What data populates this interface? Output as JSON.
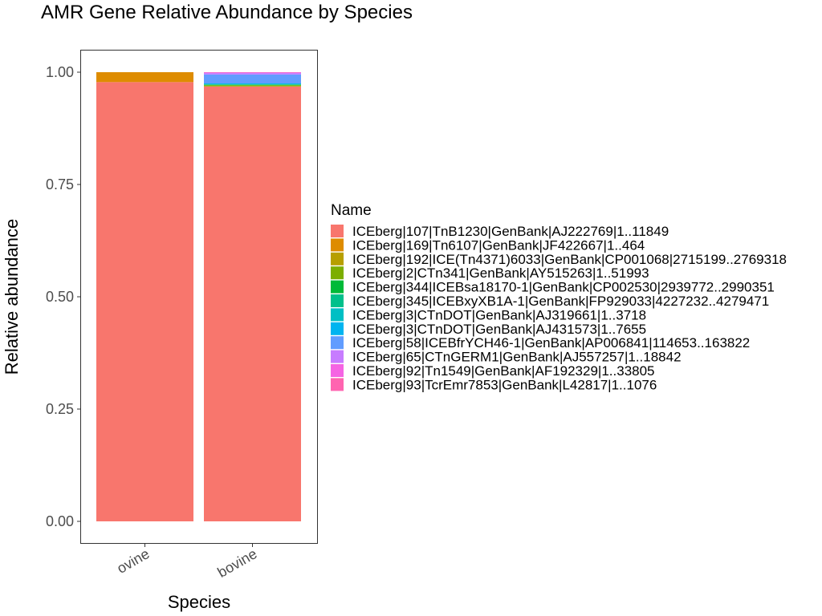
{
  "chart_data": {
    "type": "bar",
    "stacked": true,
    "title": "AMR Gene Relative Abundance by Species",
    "xlabel": "Species",
    "ylabel": "Relative abundance",
    "categories": [
      "ovine",
      "bovine"
    ],
    "ylim": [
      0,
      1
    ],
    "yticks": [
      "0.00",
      "0.25",
      "0.50",
      "0.75",
      "1.00"
    ],
    "grid": false,
    "legend_title": "Name",
    "legend_position": "right",
    "series": [
      {
        "name": "ICEberg|107|TnB1230|GenBank|AJ222769|1..11849",
        "color": "#F8766D",
        "values": [
          0.978,
          0.968
        ]
      },
      {
        "name": "ICEberg|169|Tn6107|GenBank|JF422667|1..464",
        "color": "#DE8C00",
        "values": [
          0.022,
          0.0
        ]
      },
      {
        "name": "ICEberg|192|ICE(Tn4371)6033|GenBank|CP001068|2715199..2769318",
        "color": "#B79F00",
        "values": [
          0.0,
          0.001
        ]
      },
      {
        "name": "ICEberg|2|CTn341|GenBank|AY515263|1..51993",
        "color": "#7CAE00",
        "values": [
          0.0,
          0.002
        ]
      },
      {
        "name": "ICEberg|344|ICEBsa18170-1|GenBank|CP002530|2939772..2990351",
        "color": "#00BA38",
        "values": [
          0.0,
          0.001
        ]
      },
      {
        "name": "ICEberg|345|ICEBxyXB1A-1|GenBank|FP929033|4227232..4279471",
        "color": "#00C08B",
        "values": [
          0.0,
          0.001
        ]
      },
      {
        "name": "ICEberg|3|CTnDOT|GenBank|AJ319661|1..3718",
        "color": "#00BFC4",
        "values": [
          0.0,
          0.001
        ]
      },
      {
        "name": "ICEberg|3|CTnDOT|GenBank|AJ431573|1..7655",
        "color": "#00B4F0",
        "values": [
          0.0,
          0.001
        ]
      },
      {
        "name": "ICEberg|58|ICEBfrYCH46-1|GenBank|AP006841|114653..163822",
        "color": "#619CFF",
        "values": [
          0.0,
          0.02
        ]
      },
      {
        "name": "ICEberg|65|CTnGERM1|GenBank|AJ557257|1..18842",
        "color": "#C77CFF",
        "values": [
          0.0,
          0.004
        ]
      },
      {
        "name": "ICEberg|92|Tn1549|GenBank|AF192329|1..33805",
        "color": "#F564E3",
        "values": [
          0.0,
          0.0005
        ]
      },
      {
        "name": "ICEberg|93|TcrEmr7853|GenBank|L42817|1..1076",
        "color": "#FF64B0",
        "values": [
          0.0,
          0.0005
        ]
      }
    ]
  }
}
